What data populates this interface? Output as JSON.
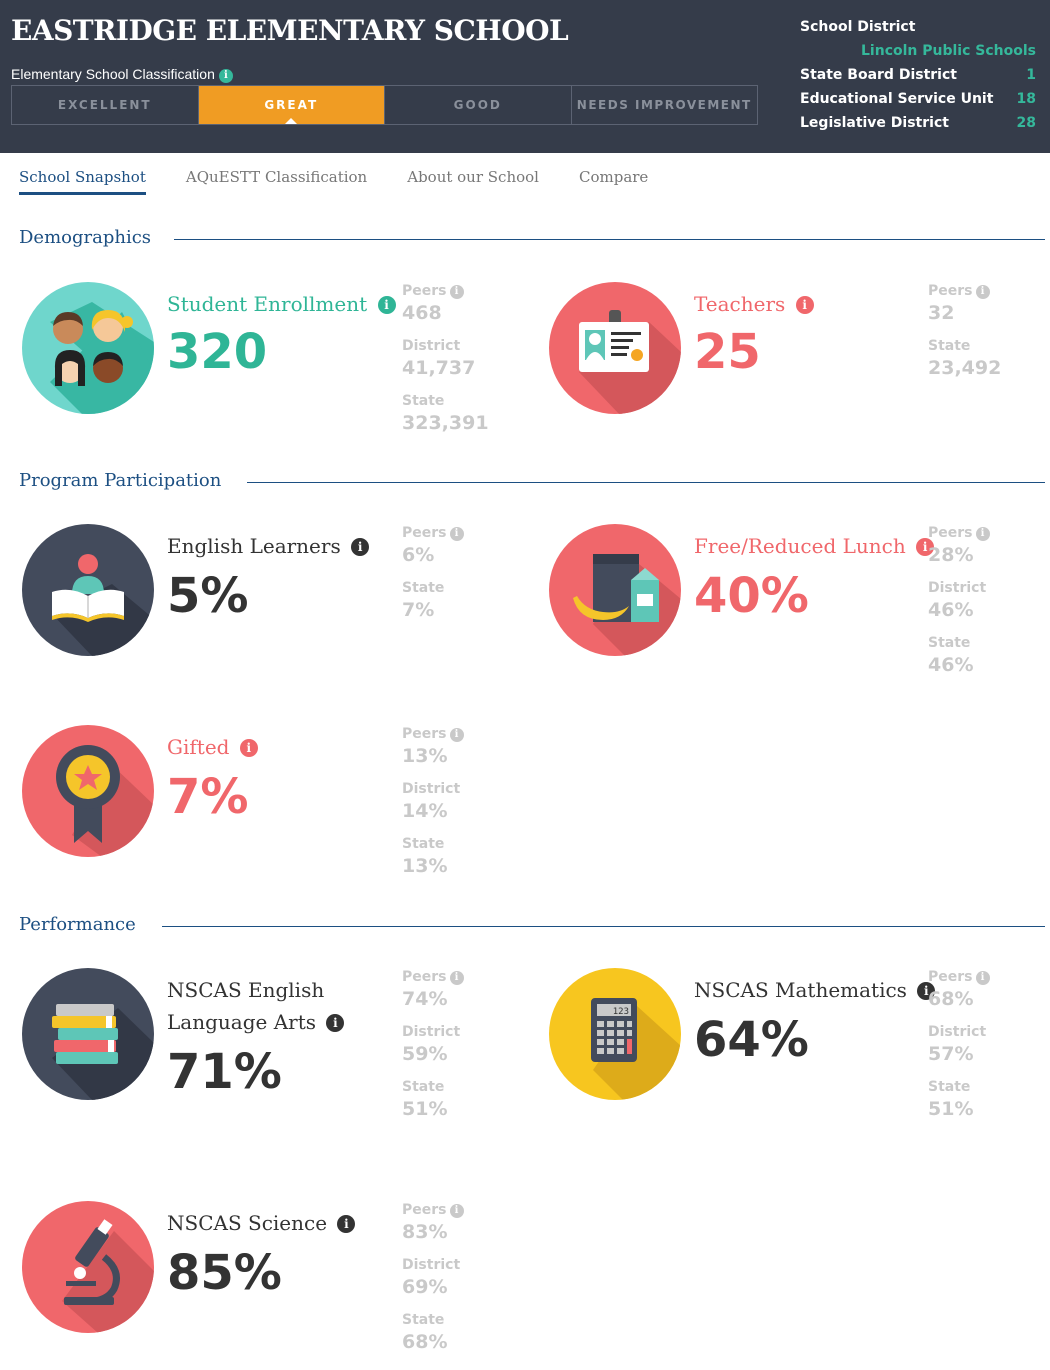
{
  "header": {
    "school_name": "EASTRIDGE ELEMENTARY SCHOOL",
    "classification_label": "Elementary School Classification",
    "classifications": [
      "EXCELLENT",
      "GREAT",
      "GOOD",
      "NEEDS IMPROVEMENT"
    ],
    "active_classification": "GREAT",
    "district": {
      "title": "School District",
      "name": "Lincoln Public Schools",
      "rows": [
        {
          "label": "State Board District",
          "value": "1"
        },
        {
          "label": "Educational Service Unit",
          "value": "18"
        },
        {
          "label": "Legislative District",
          "value": "28"
        }
      ]
    }
  },
  "tabs": [
    {
      "label": "School Snapshot",
      "active": true
    },
    {
      "label": "AQuESTT Classification",
      "active": false
    },
    {
      "label": "About our School",
      "active": false
    },
    {
      "label": "Compare",
      "active": false
    }
  ],
  "info_glyph": "i",
  "sections": {
    "demographics": "Demographics",
    "program": "Program Participation",
    "performance": "Performance"
  },
  "metrics": {
    "enrollment": {
      "label": "Student Enrollment",
      "value": "320",
      "icon": "students-icon",
      "color": "#2fb596",
      "comparisons": [
        {
          "label": "Peers",
          "value": "468"
        },
        {
          "label": "District",
          "value": "41,737"
        },
        {
          "label": "State",
          "value": "323,391"
        }
      ]
    },
    "teachers": {
      "label": "Teachers",
      "value": "25",
      "icon": "id-badge-icon",
      "color": "#f0676b",
      "comparisons": [
        {
          "label": "Peers",
          "value": "32"
        },
        {
          "label": "State",
          "value": "23,492"
        }
      ]
    },
    "english_learners": {
      "label": "English Learners",
      "value": "5%",
      "icon": "reader-book-icon",
      "color": "#333333",
      "comparisons": [
        {
          "label": "Peers",
          "value": "6%"
        },
        {
          "label": "State",
          "value": "7%"
        }
      ]
    },
    "lunch": {
      "label": "Free/Reduced Lunch",
      "value": "40%",
      "icon": "lunch-bag-icon",
      "color": "#f0676b",
      "comparisons": [
        {
          "label": "Peers",
          "value": "28%"
        },
        {
          "label": "District",
          "value": "46%"
        },
        {
          "label": "State",
          "value": "46%"
        }
      ]
    },
    "gifted": {
      "label": "Gifted",
      "value": "7%",
      "icon": "award-ribbon-icon",
      "color": "#f0676b",
      "comparisons": [
        {
          "label": "Peers",
          "value": "13%"
        },
        {
          "label": "District",
          "value": "14%"
        },
        {
          "label": "State",
          "value": "13%"
        }
      ]
    },
    "ela": {
      "label_line1": "NSCAS English",
      "label_line2": "Language Arts",
      "value": "71%",
      "icon": "books-stack-icon",
      "color": "#333333",
      "comparisons": [
        {
          "label": "Peers",
          "value": "74%"
        },
        {
          "label": "District",
          "value": "59%"
        },
        {
          "label": "State",
          "value": "51%"
        }
      ]
    },
    "math": {
      "label": "NSCAS Mathematics",
      "value": "64%",
      "icon": "calculator-icon",
      "color": "#333333",
      "calc_display": "123",
      "comparisons": [
        {
          "label": "Peers",
          "value": "68%"
        },
        {
          "label": "District",
          "value": "57%"
        },
        {
          "label": "State",
          "value": "51%"
        }
      ]
    },
    "science": {
      "label": "NSCAS Science",
      "value": "85%",
      "icon": "microscope-icon",
      "color": "#333333",
      "comparisons": [
        {
          "label": "Peers",
          "value": "83%"
        },
        {
          "label": "District",
          "value": "69%"
        },
        {
          "label": "State",
          "value": "68%"
        }
      ]
    }
  }
}
